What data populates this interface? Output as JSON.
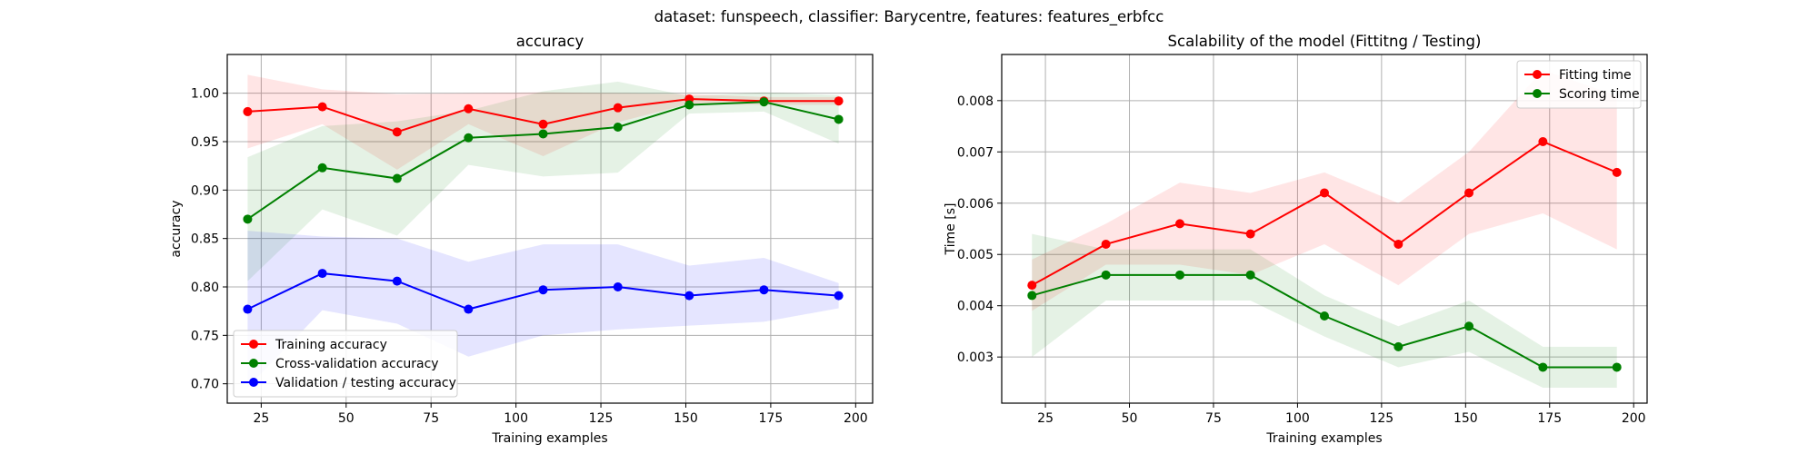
{
  "suptitle": "dataset: funspeech, classifier: Barycentre, features: features_erbfcc",
  "colors": {
    "red": "#ff0000",
    "green": "#008000",
    "blue": "#0000ff"
  },
  "chart_data": [
    {
      "type": "line",
      "title": "accuracy",
      "xlabel": "Training examples",
      "ylabel": "accuracy",
      "xlim": [
        15,
        205
      ],
      "ylim": [
        0.68,
        1.04
      ],
      "xticks": [
        25,
        50,
        75,
        100,
        125,
        150,
        175,
        200
      ],
      "yticks": [
        0.7,
        0.75,
        0.8,
        0.85,
        0.9,
        0.95,
        1.0
      ],
      "ytick_labels": [
        "0.70",
        "0.75",
        "0.80",
        "0.85",
        "0.90",
        "0.95",
        "1.00"
      ],
      "grid": true,
      "legend_position": "lower-left",
      "x": [
        21,
        43,
        65,
        86,
        108,
        130,
        151,
        173,
        195
      ],
      "series": [
        {
          "name": "Training accuracy",
          "color": "#ff0000",
          "values": [
            0.981,
            0.986,
            0.96,
            0.984,
            0.968,
            0.985,
            0.994,
            0.992,
            0.992
          ],
          "band_lower": [
            0.943,
            0.968,
            0.921,
            0.968,
            0.935,
            0.97,
            0.989,
            0.988,
            0.988
          ],
          "band_upper": [
            1.019,
            1.004,
            0.999,
            1.0,
            1.001,
            1.0,
            0.999,
            0.996,
            0.996
          ]
        },
        {
          "name": "Cross-validation accuracy",
          "color": "#008000",
          "values": [
            0.87,
            0.923,
            0.912,
            0.954,
            0.958,
            0.965,
            0.988,
            0.991,
            0.973
          ],
          "band_lower": [
            0.806,
            0.88,
            0.853,
            0.926,
            0.914,
            0.918,
            0.979,
            0.981,
            0.948
          ],
          "band_upper": [
            0.934,
            0.966,
            0.971,
            0.982,
            1.002,
            1.012,
            0.997,
            1.001,
            0.998
          ]
        },
        {
          "name": "Validation / testing accuracy",
          "color": "#0000ff",
          "values": [
            0.777,
            0.814,
            0.806,
            0.777,
            0.797,
            0.8,
            0.791,
            0.797,
            0.791
          ],
          "band_lower": [
            0.696,
            0.776,
            0.762,
            0.728,
            0.75,
            0.756,
            0.76,
            0.764,
            0.778
          ],
          "band_upper": [
            0.858,
            0.852,
            0.85,
            0.826,
            0.844,
            0.844,
            0.822,
            0.83,
            0.804
          ]
        }
      ]
    },
    {
      "type": "line",
      "title": "Scalability of the model (Fittitng / Testing)",
      "xlabel": "Training examples",
      "ylabel": "Time [s]",
      "xlim": [
        12,
        204
      ],
      "ylim": [
        0.0021,
        0.0089
      ],
      "xticks": [
        25,
        50,
        75,
        100,
        125,
        150,
        175,
        200
      ],
      "yticks": [
        0.003,
        0.004,
        0.005,
        0.006,
        0.007,
        0.008
      ],
      "ytick_labels": [
        "0.003",
        "0.004",
        "0.005",
        "0.006",
        "0.007",
        "0.008"
      ],
      "grid": true,
      "legend_position": "upper-right",
      "x": [
        21,
        43,
        65,
        86,
        108,
        130,
        151,
        173,
        195
      ],
      "series": [
        {
          "name": "Fitting time",
          "color": "#ff0000",
          "values": [
            0.0044,
            0.0052,
            0.0056,
            0.0054,
            0.0062,
            0.0052,
            0.0062,
            0.0072,
            0.0066
          ],
          "band_lower": [
            0.0039,
            0.0048,
            0.0048,
            0.0046,
            0.0052,
            0.0044,
            0.0054,
            0.0058,
            0.0051
          ],
          "band_upper": [
            0.0049,
            0.0056,
            0.0064,
            0.0062,
            0.0066,
            0.006,
            0.007,
            0.0086,
            0.0081
          ]
        },
        {
          "name": "Scoring time",
          "color": "#008000",
          "values": [
            0.0042,
            0.0046,
            0.0046,
            0.0046,
            0.0038,
            0.0032,
            0.0036,
            0.0028,
            0.0028
          ],
          "band_lower": [
            0.003,
            0.0041,
            0.0041,
            0.0041,
            0.0034,
            0.0028,
            0.0031,
            0.0024,
            0.0024
          ],
          "band_upper": [
            0.0054,
            0.0051,
            0.0051,
            0.0051,
            0.0042,
            0.0036,
            0.0041,
            0.0032,
            0.0032
          ]
        }
      ]
    }
  ]
}
